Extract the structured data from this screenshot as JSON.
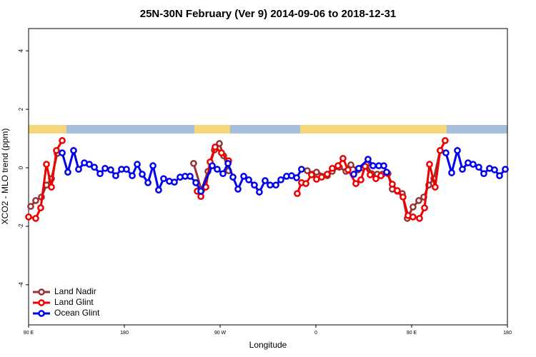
{
  "chart_data": {
    "type": "line",
    "title": "25N-30N February (Ver 9)   2014-09-06 to 2018-12-31",
    "xlabel": "Longitude",
    "ylabel": "XCO2 - MLO trend (ppm)",
    "xlim": [
      90,
      540
    ],
    "xticks": [
      {
        "value": 90,
        "label": "90 E"
      },
      180,
      {
        "value": 270,
        "label": "90 W"
      },
      {
        "value": 360,
        "label": "0"
      },
      {
        "value": 450,
        "label": "90 E"
      },
      {
        "value": 540,
        "label": "180"
      }
    ],
    "ylim": [
      -5.37,
      4.76
    ],
    "yticks": [
      -4,
      -2,
      0,
      2,
      4
    ],
    "grid": false,
    "legend": "bottomleft",
    "series": [
      {
        "name": "Land Nadir",
        "color": "#993333",
        "x": [
          92.0,
          96.7,
          102.1,
          106.8,
          111.5,
          116.9,
          null,
          245.1,
          252.5,
          258.6,
          264.6,
          269.3,
          273.3,
          278.0,
          null,
          351.9,
          356.6,
          360.6,
          370.7,
          375.4,
          382.1,
          388.2,
          392.9,
          399.6,
          403.6,
          407.7,
          412.4,
          417.7,
          422.4,
          427.8,
          431.8,
          436.5,
          441.2,
          445.9,
          451.3,
          456.7,
          461.4,
          466.1,
          470.8,
          476.8
        ],
        "values": [
          -1.32,
          -1.12,
          -1.0,
          -0.59,
          -0.37,
          0.49,
          null,
          0.15,
          -0.76,
          -0.12,
          0.61,
          0.83,
          0.41,
          -0.1,
          null,
          -0.1,
          -0.22,
          -0.15,
          -0.27,
          -0.12,
          0.02,
          -0.12,
          0.1,
          -0.07,
          0,
          0.12,
          -0.2,
          -0.22,
          -0.22,
          -0.2,
          -0.73,
          -0.8,
          -0.88,
          -1.73,
          -1.34,
          -1.12,
          -1.0,
          -0.59,
          -0.37,
          0.59
        ]
      },
      {
        "name": "Land Glint",
        "color": "#ee0000",
        "x": [
          90.0,
          96.7,
          101.4,
          106.8,
          111.5,
          116.2,
          121.6,
          null,
          248.5,
          251.9,
          256.6,
          260.6,
          265.3,
          271.3,
          278.0,
          null,
          342.5,
          346.5,
          350.6,
          355.9,
          360.6,
          365.4,
          370.7,
          375.4,
          380.8,
          385.5,
          390.2,
          397.6,
          402.3,
          406.3,
          411.0,
          416.4,
          421.1,
          426.5,
          431.8,
          436.5,
          441.9,
          446.6,
          451.3,
          457.4,
          462.1,
          466.8,
          472.1,
          476.8,
          481.5
        ],
        "values": [
          -1.68,
          -1.73,
          -1.37,
          0.12,
          -0.66,
          0.59,
          0.93,
          null,
          -0.8,
          -0.98,
          -0.66,
          0.2,
          0.71,
          0.51,
          0.24,
          null,
          -0.88,
          -0.51,
          -0.54,
          -0.24,
          -0.39,
          -0.32,
          -0.22,
          -0.02,
          0.07,
          0.32,
          -0.07,
          -0.54,
          -0.41,
          0.05,
          -0.24,
          -0.37,
          -0.27,
          -0.17,
          -0.56,
          -0.78,
          -1.0,
          -1.63,
          -1.68,
          -1.73,
          -1.37,
          0.12,
          -0.66,
          0.59,
          0.93
        ]
      },
      {
        "name": "Ocean Glint",
        "color": "#0000ee",
        "x": [
          121.6,
          126.9,
          132.3,
          137.0,
          142.4,
          147.1,
          151.8,
          157.2,
          161.9,
          167.2,
          171.9,
          177.3,
          182.0,
          187.4,
          192.1,
          196.8,
          202.2,
          206.9,
          212.2,
          216.9,
          222.3,
          227.0,
          232.4,
          237.1,
          241.8,
          247.2,
          251.9,
          262.6,
          267.3,
          272.7,
          277.4,
          282.1,
          286.8,
          292.2,
          296.9,
          302.2,
          306.9,
          312.3,
          317.0,
          322.4,
          327.1,
          332.4,
          337.1,
          341.9,
          346.5,
          null,
          395.6,
          400.3,
          409.0,
          413.7,
          419.1,
          423.8,
          426.5,
          null,
          482.2,
          487.6,
          493.0,
          497.7,
          503.0,
          507.7,
          513.1,
          517.8,
          523.2,
          527.9,
          532.6,
          538.0
        ],
        "values": [
          0.51,
          -0.15,
          0.59,
          -0.05,
          0.17,
          0.12,
          0.02,
          -0.2,
          -0.02,
          -0.07,
          -0.27,
          -0.05,
          -0.05,
          -0.27,
          0.12,
          -0.22,
          -0.51,
          0.07,
          -0.76,
          -0.37,
          -0.46,
          -0.49,
          -0.32,
          -0.29,
          -0.29,
          -0.51,
          -0.8,
          0.07,
          -0.05,
          -0.2,
          0.15,
          -0.32,
          -0.73,
          -0.29,
          -0.41,
          -0.59,
          -0.83,
          -0.44,
          -0.59,
          -0.59,
          -0.41,
          -0.29,
          -0.27,
          -0.34,
          -0.05,
          null,
          -0.22,
          -0.02,
          0.29,
          0.07,
          0.07,
          0.07,
          -0.15,
          null,
          0.51,
          -0.17,
          0.59,
          -0.05,
          0.17,
          0.12,
          0.02,
          -0.2,
          -0.02,
          -0.07,
          -0.27,
          -0.05
        ]
      }
    ]
  }
}
